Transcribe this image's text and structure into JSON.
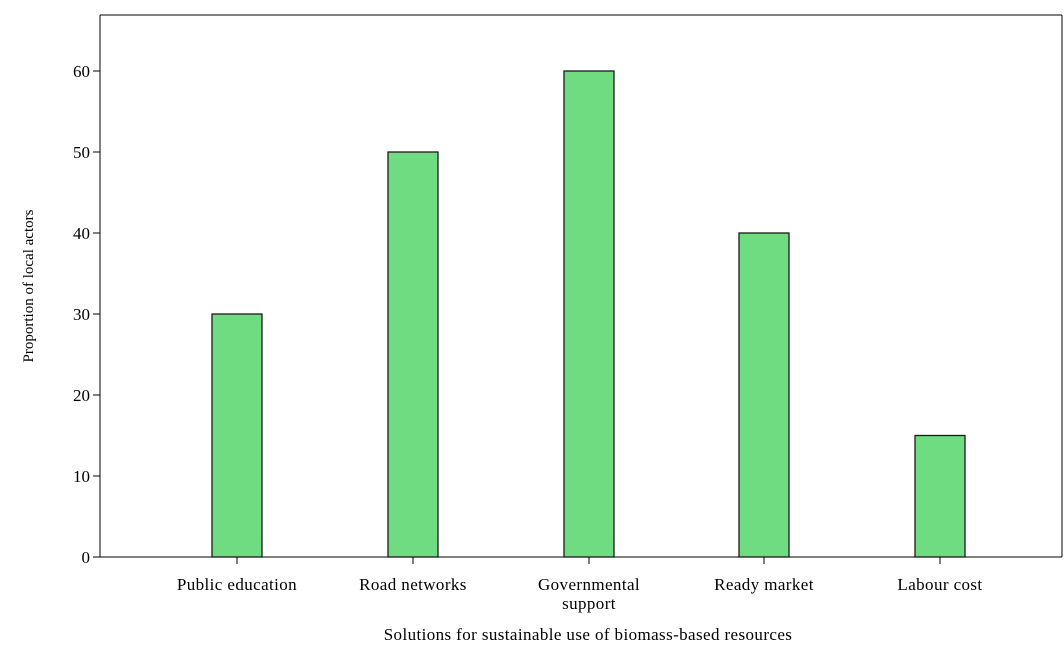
{
  "chart_data": {
    "type": "bar",
    "categories": [
      [
        "Public education"
      ],
      [
        "Road networks"
      ],
      [
        "Governmental",
        "support"
      ],
      [
        "Ready market"
      ],
      [
        "Labour cost"
      ]
    ],
    "values": [
      30,
      50,
      60,
      40,
      15
    ],
    "title": "",
    "xlabel": "Solutions for sustainable use of biomass-based resources",
    "ylabel": "Proportion of local actors",
    "ylim": [
      0,
      66
    ],
    "yticks": [
      0,
      10,
      20,
      30,
      40,
      50,
      60
    ],
    "grid": false,
    "legend": "none",
    "colors": {
      "bar_fill": "#6fdc82",
      "bar_stroke": "#1a1a1a",
      "axis": "#000000",
      "background": "#ffffff"
    }
  }
}
